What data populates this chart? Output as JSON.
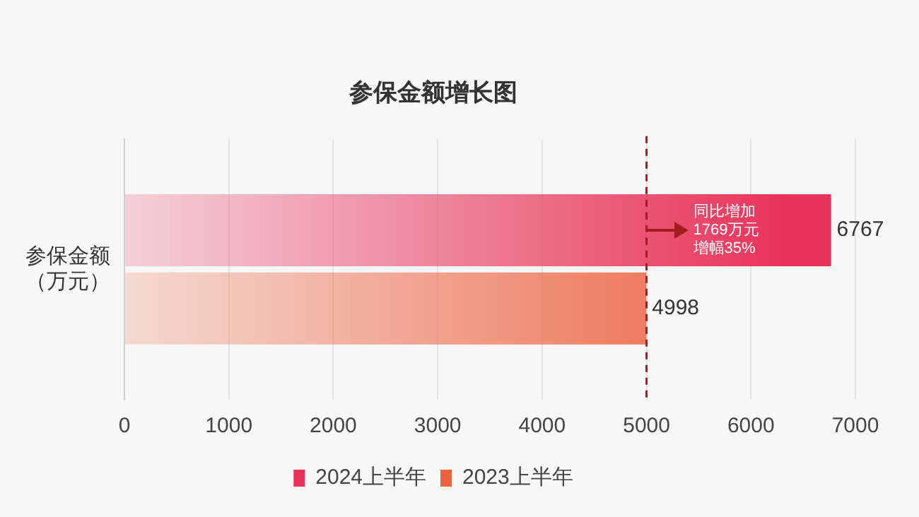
{
  "chart_data": {
    "type": "bar",
    "orientation": "horizontal",
    "title": "参保金额增长图",
    "categories": [
      "参保金额（万元）"
    ],
    "series": [
      {
        "name": "2024上半年",
        "color": "#e8345a",
        "values": [
          6767
        ]
      },
      {
        "name": "2023上半年",
        "color": "#ec6340",
        "values": [
          4998
        ]
      }
    ],
    "xlim": [
      0,
      7000
    ],
    "xticks": [
      0,
      1000,
      2000,
      3000,
      4000,
      5000,
      6000,
      7000
    ],
    "grid": "x",
    "legend": "bottom",
    "data_labels": true,
    "ref_lines": [
      {
        "axis": "x",
        "value": 5000,
        "color": "#a31d1d",
        "line_style": "dashed"
      }
    ],
    "annotations": [
      "同比增加1769万元增幅35%"
    ]
  }
}
